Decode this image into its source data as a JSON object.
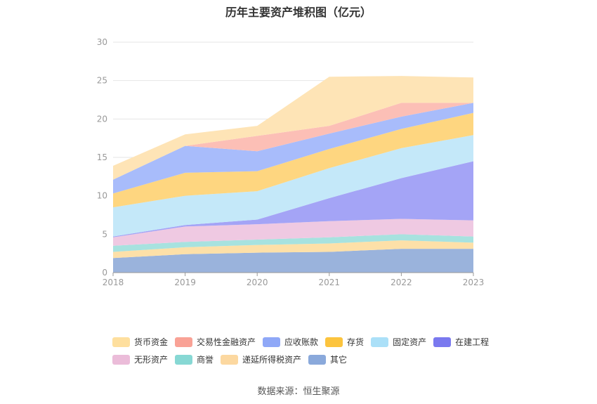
{
  "chart_data": {
    "type": "area",
    "stacked": true,
    "title": "历年主要资产堆积图（亿元）",
    "source": "数据来源：恒生聚源",
    "x": [
      "2018",
      "2019",
      "2020",
      "2021",
      "2022",
      "2023"
    ],
    "ylim": [
      0,
      30
    ],
    "yticks": [
      "0",
      "5",
      "10",
      "15",
      "20",
      "25",
      "30"
    ],
    "grid": true,
    "legend_position": "bottom",
    "series": [
      {
        "name": "其它",
        "color": "#9ab3dc",
        "values": [
          1.9,
          2.4,
          2.6,
          2.7,
          3.1,
          3.1
        ]
      },
      {
        "name": "递延所得税资产",
        "color": "#fde0a8",
        "values": [
          0.8,
          0.9,
          1.0,
          1.1,
          1.1,
          0.8
        ]
      },
      {
        "name": "商誉",
        "color": "#a7e2df",
        "values": [
          0.8,
          0.7,
          0.7,
          0.8,
          0.8,
          0.8
        ]
      },
      {
        "name": "无形资产",
        "color": "#efc9e2",
        "values": [
          1.1,
          2.0,
          2.0,
          2.1,
          2.0,
          2.1
        ]
      },
      {
        "name": "在建工程",
        "color": "#a4a4f6",
        "values": [
          0.1,
          0.2,
          0.6,
          3.0,
          5.3,
          7.7
        ]
      },
      {
        "name": "固定资产",
        "color": "#c4e8f9",
        "values": [
          3.8,
          3.8,
          3.7,
          3.9,
          3.9,
          3.4
        ]
      },
      {
        "name": "存货",
        "color": "#fed680",
        "values": [
          1.8,
          3.0,
          2.6,
          2.5,
          2.5,
          2.9
        ]
      },
      {
        "name": "应收账款",
        "color": "#a8bcfb",
        "values": [
          1.8,
          3.5,
          2.6,
          2.0,
          1.6,
          1.3
        ]
      },
      {
        "name": "交易性金融资产",
        "color": "#fcbfb6",
        "values": [
          0.0,
          0.0,
          2.0,
          1.0,
          1.8,
          0.0
        ]
      },
      {
        "name": "货币资金",
        "color": "#fee4b6",
        "values": [
          1.8,
          1.5,
          1.3,
          6.4,
          3.5,
          3.3
        ]
      }
    ]
  },
  "legend": {
    "row1": [
      {
        "name": "货币资金",
        "color": "#fedf9e"
      },
      {
        "name": "交易性金融资产",
        "color": "#f9a296"
      },
      {
        "name": "应收账款",
        "color": "#8fa8f7"
      },
      {
        "name": "存货",
        "color": "#fcc43e"
      },
      {
        "name": "固定资产",
        "color": "#abe0f8"
      },
      {
        "name": "在建工程",
        "color": "#7a79ef"
      }
    ],
    "row2": [
      {
        "name": "无形资产",
        "color": "#ebbcd9"
      },
      {
        "name": "商誉",
        "color": "#87d8d4"
      },
      {
        "name": "递延所得税资产",
        "color": "#fcd8a0"
      },
      {
        "name": "其它",
        "color": "#8aa9db"
      }
    ]
  }
}
